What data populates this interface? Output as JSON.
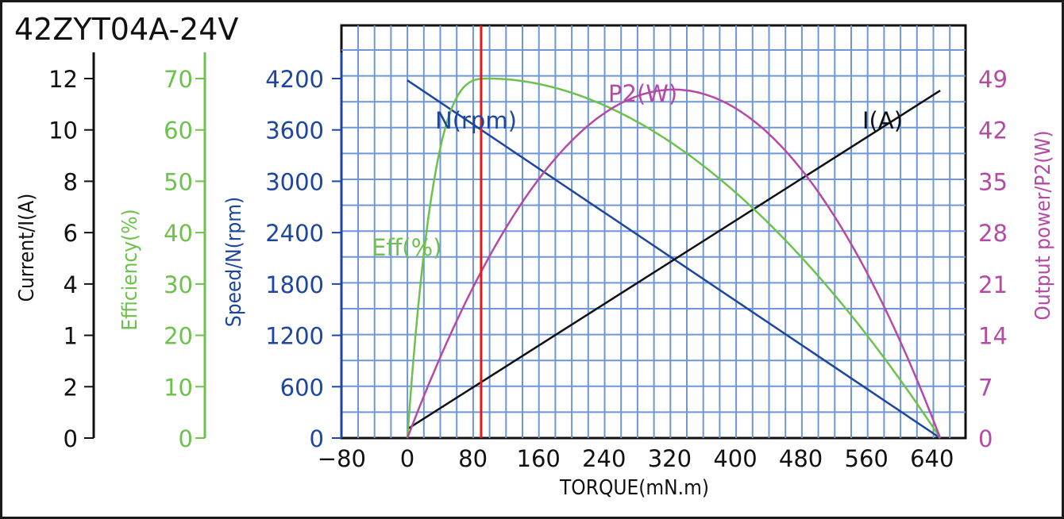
{
  "chart_data": {
    "type": "line",
    "title": "42ZYT04A-24V",
    "xlabel": "TORQUE(mN.m)",
    "x_ticks": [
      "−80",
      "0",
      "80",
      "160",
      "240",
      "320",
      "400",
      "480",
      "560",
      "640"
    ],
    "xlim": [
      -80,
      680
    ],
    "axes": {
      "current": {
        "label": "Current/I(A)",
        "ticks": [
          "0",
          "2",
          "1",
          "4",
          "6",
          "8",
          "10",
          "12"
        ],
        "max": 12,
        "color": "#111111"
      },
      "efficiency": {
        "label": "Efficiency(%)",
        "ticks": [
          "0",
          "10",
          "20",
          "30",
          "40",
          "50",
          "60",
          "70"
        ],
        "max": 70,
        "color": "#6cc24a"
      },
      "speed": {
        "label": "Speed/N(rpm)",
        "ticks": [
          "0",
          "600",
          "1200",
          "1800",
          "2400",
          "3000",
          "3600",
          "4200"
        ],
        "max": 4200,
        "color": "#1d46a0"
      },
      "power": {
        "label": "Output power/P2(W)",
        "ticks": [
          "0",
          "7",
          "14",
          "21",
          "28",
          "35",
          "42",
          "49"
        ],
        "max": 49,
        "color": "#b54aa6"
      }
    },
    "marker_torque": 90,
    "series": [
      {
        "name": "N(rpm)",
        "axis": "speed",
        "x": [
          0,
          650
        ],
        "y": [
          4180,
          0
        ]
      },
      {
        "name": "I(A)",
        "axis": "current",
        "x": [
          0,
          650
        ],
        "y": [
          0.3,
          11.6
        ]
      },
      {
        "name": "Eff(%)",
        "axis": "efficiency",
        "x": [
          0,
          100,
          650
        ],
        "peak": 70,
        "y0": 0,
        "yend": 0
      },
      {
        "name": "P2(W)",
        "axis": "power",
        "x": [
          0,
          650
        ],
        "peak": 47.5
      }
    ]
  }
}
